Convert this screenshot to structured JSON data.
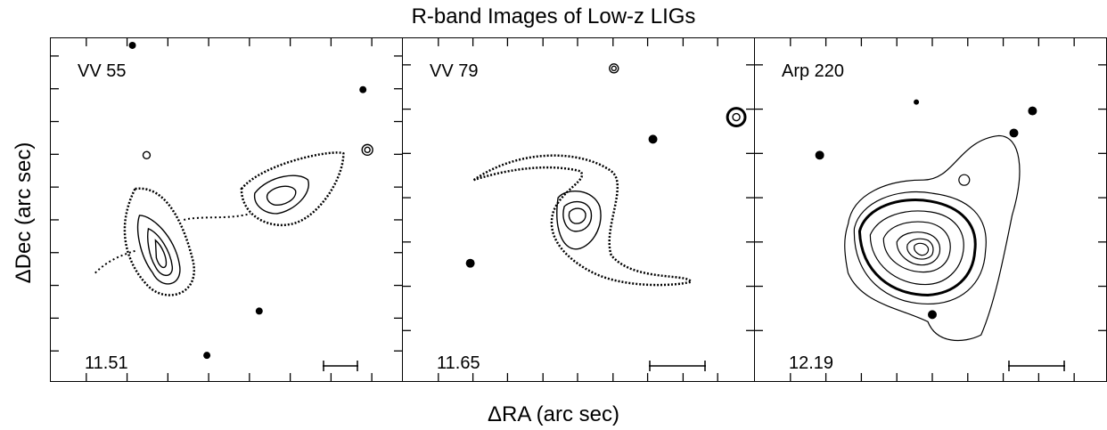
{
  "figure": {
    "title": "R-band Images of Low-z LIGs",
    "x_axis_label": "ΔRA (arc sec)",
    "y_axis_label": "ΔDec (arc sec)"
  },
  "panels": [
    {
      "name": "VV 55",
      "value": "11.51"
    },
    {
      "name": "VV 79",
      "value": "11.65"
    },
    {
      "name": "Arp 220",
      "value": "12.19"
    }
  ]
}
